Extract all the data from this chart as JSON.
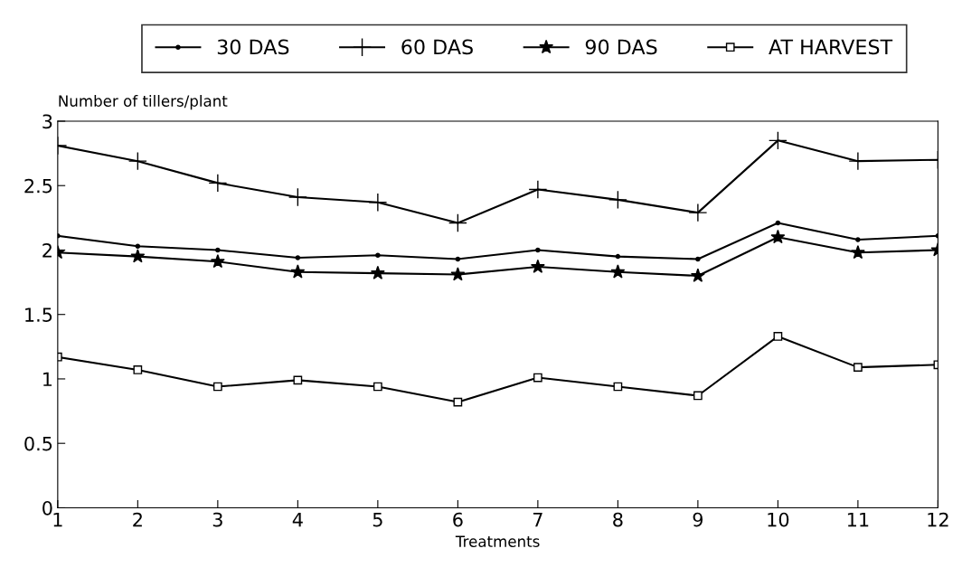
{
  "chart_data": {
    "type": "line",
    "xlabel": "Treatments",
    "ylabel": "Number of tillers/plant",
    "x": [
      1,
      2,
      3,
      4,
      5,
      6,
      7,
      8,
      9,
      10,
      11,
      12
    ],
    "xlim": [
      1,
      12
    ],
    "xticks": [
      1,
      2,
      3,
      4,
      5,
      6,
      7,
      8,
      9,
      10,
      11,
      12
    ],
    "ylim": [
      0,
      3
    ],
    "yticks": [
      0,
      0.5,
      1,
      1.5,
      2,
      2.5,
      3
    ],
    "grid": false,
    "legend": "top",
    "line_style": "solid",
    "series": [
      {
        "name": "30 DAS",
        "color": "#000000",
        "marker": "circle",
        "values": [
          2.11,
          2.03,
          2.0,
          1.94,
          1.96,
          1.93,
          2.0,
          1.95,
          1.93,
          2.21,
          2.08,
          2.11
        ]
      },
      {
        "name": "60 DAS",
        "color": "#000000",
        "marker": "cross",
        "values": [
          2.81,
          2.69,
          2.52,
          2.41,
          2.37,
          2.21,
          2.47,
          2.39,
          2.29,
          2.85,
          2.69,
          2.7
        ]
      },
      {
        "name": "90 DAS",
        "color": "#000000",
        "marker": "star",
        "values": [
          1.98,
          1.95,
          1.91,
          1.83,
          1.82,
          1.81,
          1.87,
          1.83,
          1.8,
          2.1,
          1.98,
          2.0
        ]
      },
      {
        "name": "AT HARVEST",
        "color": "#000000",
        "marker": "square",
        "values": [
          1.17,
          1.07,
          0.94,
          0.99,
          0.94,
          0.82,
          1.01,
          0.94,
          0.87,
          1.33,
          1.09,
          1.11
        ]
      }
    ]
  }
}
